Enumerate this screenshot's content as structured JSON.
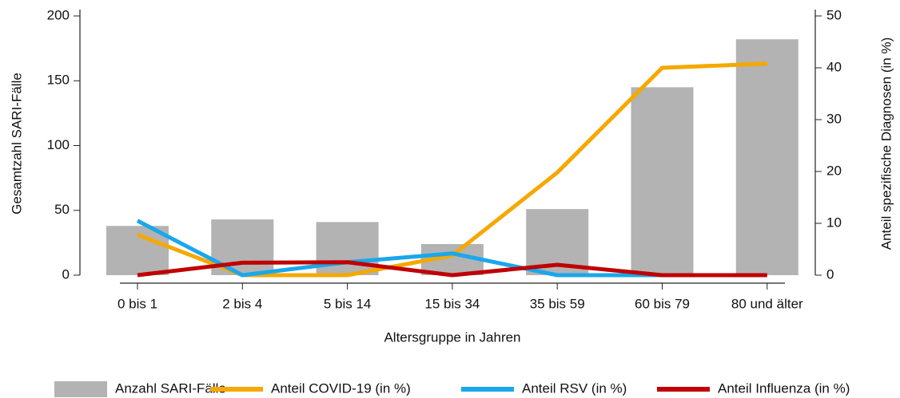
{
  "chart_data": {
    "type": "bar_line",
    "categories": [
      "0 bis 1",
      "2 bis 4",
      "5 bis 14",
      "15 bis 34",
      "35 bis 59",
      "60 bis 79",
      "80 und älter"
    ],
    "x_label": "Altersgruppe in Jahren",
    "y_label": "Gesamtzahl SARI-Fälle",
    "y2_label": "Anteil spezifische Diagnosen (in %)",
    "ylim": [
      0,
      200
    ],
    "yticks": [
      0,
      50,
      100,
      150,
      200
    ],
    "y2lim": [
      0,
      50
    ],
    "y2ticks": [
      0,
      10,
      20,
      30,
      40,
      50
    ],
    "series": [
      {
        "name": "Anzahl SARI-Fälle",
        "type": "bar",
        "color": "#b3b3b3",
        "values": [
          38,
          43,
          41,
          24,
          51,
          145,
          182
        ]
      },
      {
        "name": "Anteil COVID-19 (in %)",
        "type": "line",
        "axis": "y2",
        "color": "#f5a800",
        "values": [
          7.8,
          0,
          0,
          3.8,
          19.8,
          40,
          40.8
        ]
      },
      {
        "name": "Anteil RSV (in %)",
        "type": "line",
        "axis": "y2",
        "color": "#1aa7ec",
        "values": [
          10.5,
          0,
          2.5,
          4.2,
          0,
          0,
          0
        ]
      },
      {
        "name": "Anteil Influenza (in %)",
        "type": "line",
        "axis": "y2",
        "color": "#c00000",
        "values": [
          0,
          2.4,
          2.5,
          0,
          2,
          0,
          0
        ]
      }
    ]
  }
}
